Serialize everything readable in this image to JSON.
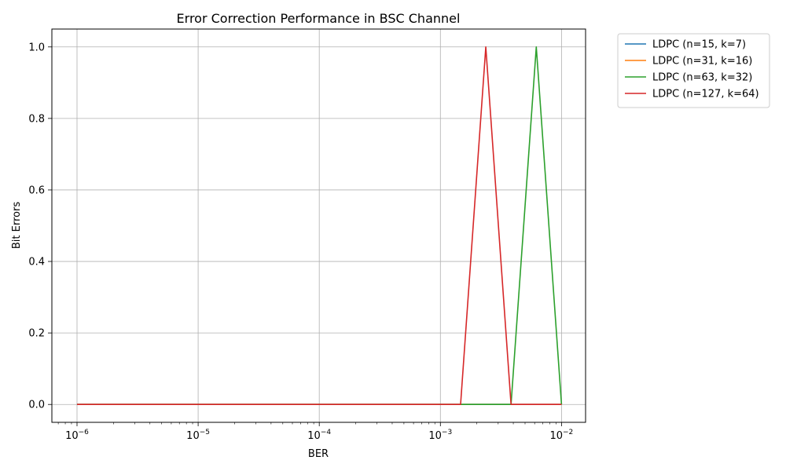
{
  "chart_data": {
    "type": "line",
    "title": "Error Correction Performance in BSC Channel",
    "xlabel": "BER",
    "ylabel": "Bit Errors",
    "xscale": "log",
    "xlim": [
      6.2e-07,
      0.0158
    ],
    "ylim": [
      -0.05,
      1.05
    ],
    "grid": true,
    "legend_position": "outside-top-right",
    "x": [
      1e-06,
      1.668e-06,
      2.783e-06,
      4.642e-06,
      7.743e-06,
      1.292e-05,
      2.154e-05,
      3.594e-05,
      5.995e-05,
      0.0001,
      0.0001668,
      0.0002783,
      0.0004642,
      0.0007743,
      0.001292,
      0.002154,
      0.003594,
      0.005995,
      0.01
    ],
    "x_ticks": [
      {
        "base": "10",
        "exp": "−6",
        "value": 1e-06
      },
      {
        "base": "10",
        "exp": "−5",
        "value": 1e-05
      },
      {
        "base": "10",
        "exp": "−4",
        "value": 0.0001
      },
      {
        "base": "10",
        "exp": "−3",
        "value": 0.001
      },
      {
        "base": "10",
        "exp": "−2",
        "value": 0.01
      }
    ],
    "y_ticks": [
      "0.0",
      "0.2",
      "0.4",
      "0.6",
      "0.8",
      "1.0"
    ],
    "y_tick_values": [
      0,
      0.2,
      0.4,
      0.6,
      0.8,
      1.0
    ],
    "series": [
      {
        "name": "LDPC (n=15, k=7)",
        "color": "#1f77b4",
        "x": [
          1e-06,
          0.001468,
          0.003831,
          0.01
        ],
        "values": [
          0,
          0,
          0,
          0
        ]
      },
      {
        "name": "LDPC (n=31, k=16)",
        "color": "#ff7f0e",
        "x": [
          1e-06,
          0.001468,
          0.003831,
          0.01
        ],
        "values": [
          0,
          0,
          0,
          0
        ]
      },
      {
        "name": "LDPC (n=63, k=32)",
        "color": "#2ca02c",
        "x": [
          1e-06,
          0.001468,
          0.003831,
          0.00619,
          0.01
        ],
        "values": [
          0,
          0,
          0,
          1,
          0
        ]
      },
      {
        "name": "LDPC (n=127, k=64)",
        "color": "#d62728",
        "x": [
          1e-06,
          0.001468,
          0.002371,
          0.003831,
          0.01
        ],
        "values": [
          0,
          0,
          1,
          0,
          0
        ]
      }
    ]
  }
}
